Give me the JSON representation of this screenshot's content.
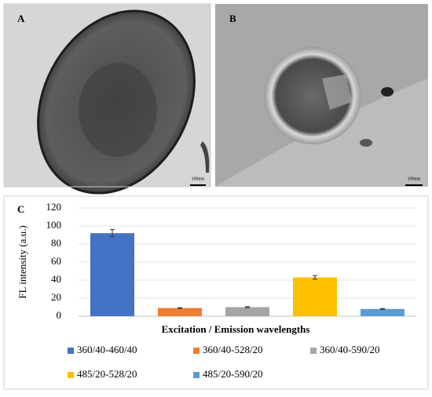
{
  "panels": [
    {
      "label": "A",
      "scale_bar": "100nm"
    },
    {
      "label": "B",
      "scale_bar": "100nm"
    },
    {
      "label": "C"
    }
  ],
  "chart_data": {
    "type": "bar",
    "ylabel": "FL intensity (a.u.)",
    "xlabel": "Excitation / Emission wavelengths",
    "categories": [
      "360/40-460/40",
      "360/40-528/20",
      "360/40-590/20",
      "485/20-528/20",
      "485/20-590/20"
    ],
    "values": [
      92,
      9,
      10,
      43,
      8
    ],
    "errors": [
      4,
      0.5,
      0.5,
      2,
      0.5
    ],
    "colors": [
      "#4472c4",
      "#ed7d31",
      "#a5a5a5",
      "#ffc000",
      "#5b9bd5"
    ],
    "ylim": [
      0,
      120
    ],
    "yticks": [
      0,
      20,
      40,
      60,
      80,
      100,
      120
    ],
    "grid": true
  }
}
